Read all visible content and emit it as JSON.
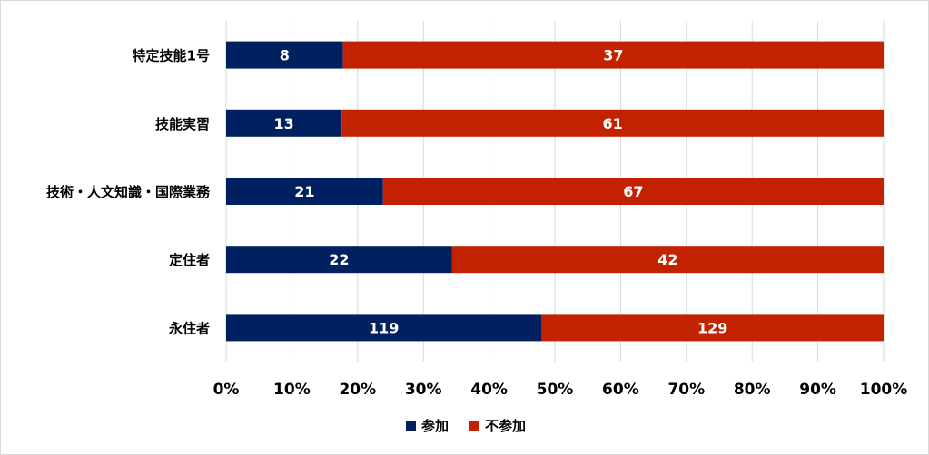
{
  "chart_data": {
    "type": "bar",
    "orientation": "horizontal",
    "stacked": "percent",
    "categories": [
      "特定技能1号",
      "技能実習",
      "技術・人文知識・国際業務",
      "定住者",
      "永住者"
    ],
    "series": [
      {
        "name": "参加",
        "values": [
          8,
          13,
          21,
          22,
          119
        ],
        "color": "#002060"
      },
      {
        "name": "不参加",
        "values": [
          37,
          61,
          67,
          42,
          129
        ],
        "color": "#C32200"
      }
    ],
    "xlim": [
      0,
      100
    ],
    "x_ticks": [
      "0%",
      "10%",
      "20%",
      "30%",
      "40%",
      "50%",
      "60%",
      "70%",
      "80%",
      "90%",
      "100%"
    ],
    "grid": "vertical",
    "legend": "bottom",
    "title": "",
    "xlabel": "",
    "ylabel": ""
  }
}
